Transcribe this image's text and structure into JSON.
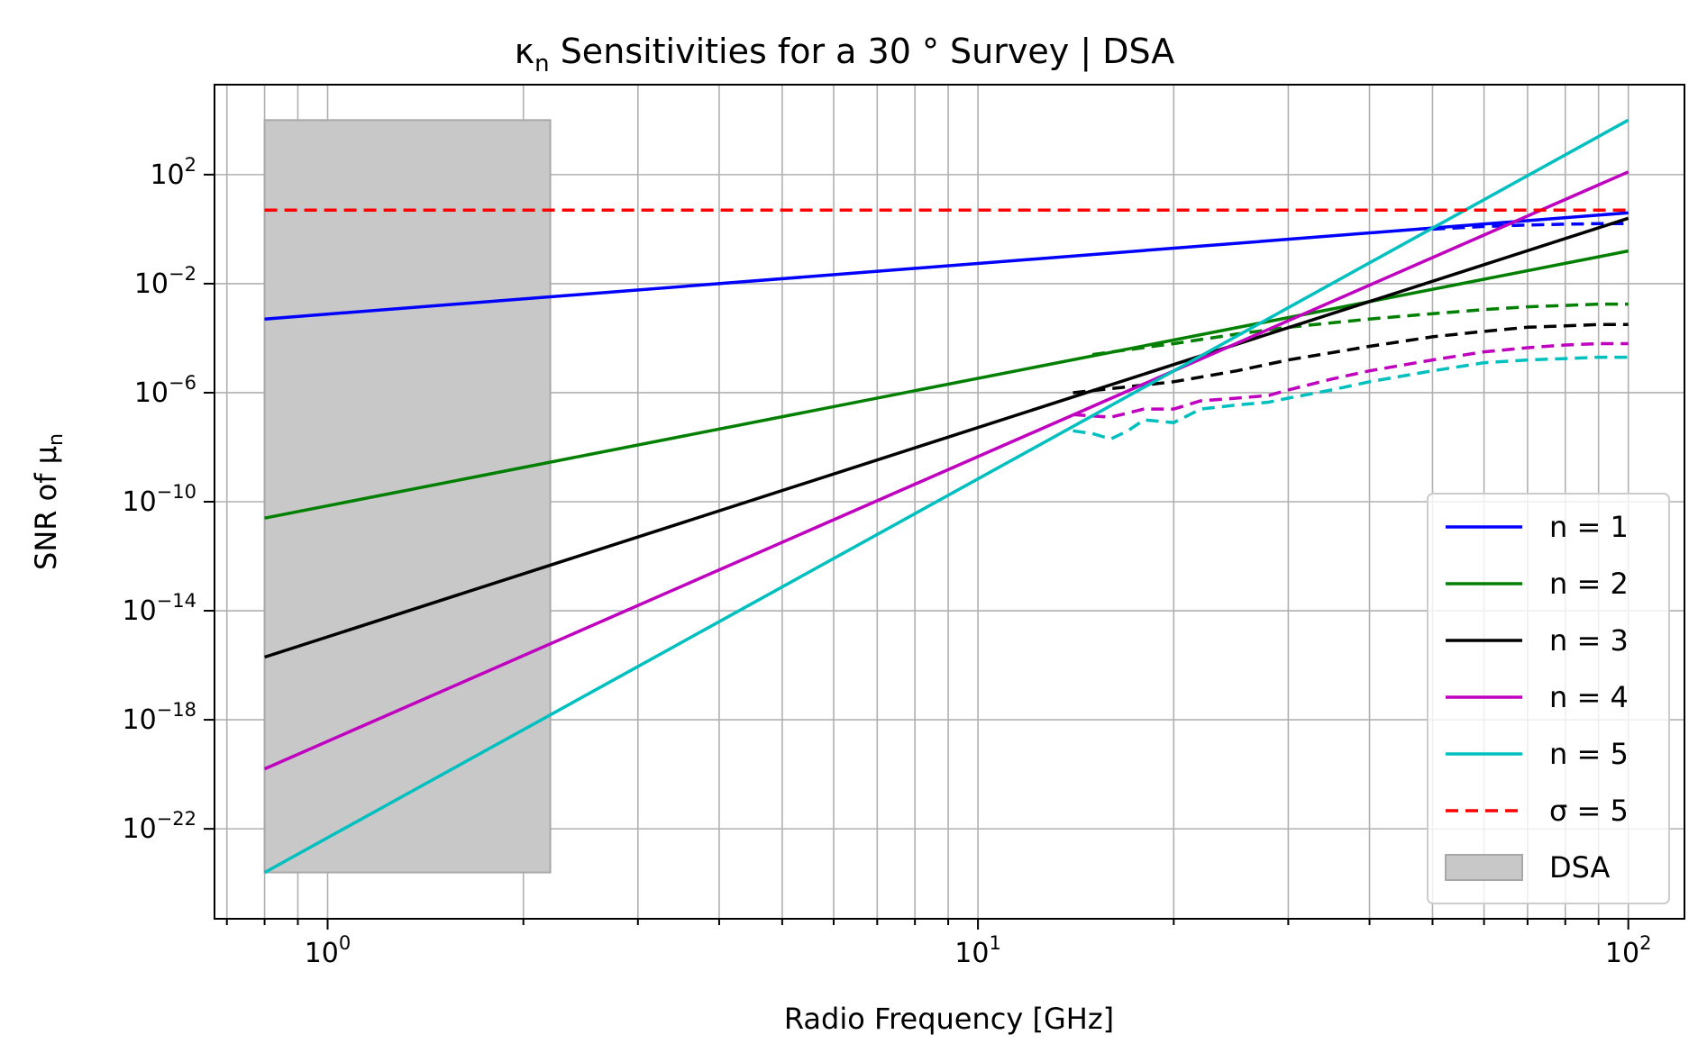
{
  "chart_data": {
    "type": "line",
    "title_prefix": "κ",
    "title_sub": "n",
    "title_suffix": " Sensitivities for a 30 ° Survey | DSA",
    "xlabel": "Radio Frequency [GHz]",
    "ylabel_prefix": "SNR of μ",
    "ylabel_sub": "n",
    "xscale": "log",
    "yscale": "log",
    "xlim": [
      0.67,
      122
    ],
    "ylim_exp": [
      -25.3,
      5.3
    ],
    "grid": true,
    "grid_minor": true,
    "legend_position": "lower-right",
    "xticks": [
      {
        "value": 1,
        "base": "10",
        "exp": "0"
      },
      {
        "value": 10,
        "base": "10",
        "exp": "1"
      },
      {
        "value": 100,
        "base": "10",
        "exp": "2"
      }
    ],
    "yticks": [
      {
        "value_exp": 2,
        "base": "10",
        "exp": "2"
      },
      {
        "value_exp": -2,
        "base": "10",
        "exp": "−2"
      },
      {
        "value_exp": -6,
        "base": "10",
        "exp": "−6"
      },
      {
        "value_exp": -10,
        "base": "10",
        "exp": "−10"
      },
      {
        "value_exp": -14,
        "base": "10",
        "exp": "−14"
      },
      {
        "value_exp": -18,
        "base": "10",
        "exp": "−18"
      },
      {
        "value_exp": -22,
        "base": "10",
        "exp": "−22"
      }
    ],
    "band": {
      "name": "DSA",
      "x": [
        0.8,
        2.2
      ],
      "y_exp": [
        -23.6,
        4.0
      ],
      "color": "#c8c8c8"
    },
    "series": [
      {
        "name": "n = 1",
        "color": "#0000ff",
        "style": "solid",
        "x": [
          0.8,
          100
        ],
        "y_exp": [
          -3.3,
          0.6
        ]
      },
      {
        "name": "n = 2",
        "color": "#007f00",
        "style": "solid",
        "x": [
          0.8,
          100
        ],
        "y_exp": [
          -10.6,
          -0.8
        ]
      },
      {
        "name": "n = 3",
        "color": "#000000",
        "style": "solid",
        "x": [
          0.8,
          100
        ],
        "y_exp": [
          -15.7,
          0.4
        ]
      },
      {
        "name": "n = 4",
        "color": "#bf00bf",
        "style": "solid",
        "x": [
          0.8,
          100
        ],
        "y_exp": [
          -19.8,
          2.1
        ]
      },
      {
        "name": "n = 5",
        "color": "#00bfbf",
        "style": "solid",
        "x": [
          0.8,
          100
        ],
        "y_exp": [
          -23.6,
          4.0
        ]
      },
      {
        "name": "σ = 5",
        "color": "#ff0000",
        "style": "dashed",
        "x": [
          0.8,
          100
        ],
        "y_exp": [
          0.7,
          0.7
        ]
      }
    ],
    "sensitivity_curves": [
      {
        "color": "#0000ff",
        "x": [
          50,
          60,
          70,
          80,
          90,
          100
        ],
        "y_exp": [
          0.0,
          0.1,
          0.15,
          0.18,
          0.2,
          0.2
        ]
      },
      {
        "color": "#007f00",
        "x": [
          15,
          20,
          25,
          30,
          40,
          50,
          60,
          70,
          80,
          90,
          100
        ],
        "y_exp": [
          -4.6,
          -4.2,
          -3.85,
          -3.6,
          -3.3,
          -3.1,
          -2.95,
          -2.85,
          -2.8,
          -2.75,
          -2.75
        ]
      },
      {
        "color": "#000000",
        "x": [
          14,
          20,
          25,
          30,
          40,
          50,
          60,
          70,
          80,
          90,
          100
        ],
        "y_exp": [
          -6.0,
          -5.6,
          -5.2,
          -4.8,
          -4.3,
          -3.95,
          -3.75,
          -3.6,
          -3.55,
          -3.5,
          -3.5
        ]
      },
      {
        "color": "#bf00bf",
        "x": [
          14,
          16,
          18,
          20,
          22,
          25,
          28,
          30,
          35,
          40,
          50,
          60,
          70,
          80,
          90,
          100
        ],
        "y_exp": [
          -6.8,
          -6.9,
          -6.6,
          -6.6,
          -6.3,
          -6.2,
          -6.1,
          -5.9,
          -5.5,
          -5.2,
          -4.8,
          -4.5,
          -4.35,
          -4.25,
          -4.2,
          -4.2
        ]
      },
      {
        "color": "#00bfbf",
        "x": [
          14,
          15,
          16,
          17,
          18,
          20,
          22,
          25,
          28,
          30,
          35,
          40,
          50,
          60,
          70,
          80,
          90,
          100
        ],
        "y_exp": [
          -7.4,
          -7.5,
          -7.7,
          -7.4,
          -7.0,
          -7.1,
          -6.6,
          -6.45,
          -6.35,
          -6.2,
          -5.9,
          -5.6,
          -5.2,
          -4.9,
          -4.8,
          -4.75,
          -4.7,
          -4.7
        ]
      }
    ]
  }
}
